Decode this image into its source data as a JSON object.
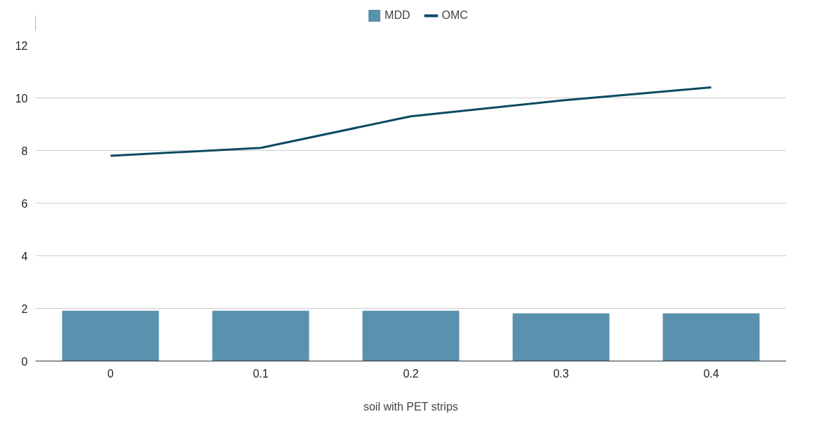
{
  "chart_data": {
    "type": "bar",
    "xlabel": "soil with PET strips",
    "categories": [
      "0",
      "0.1",
      "0.2",
      "0.3",
      "0.4"
    ],
    "series": [
      {
        "name": "MDD",
        "color": "#5a91ae",
        "values": [
          1.9,
          1.9,
          1.9,
          1.8,
          1.8
        ]
      },
      {
        "name": "OMC",
        "type": "line",
        "color": "#0d4a63",
        "values": [
          7.8,
          8.1,
          9.3,
          9.9,
          10.4
        ]
      }
    ],
    "ylim": [
      0,
      12
    ],
    "yticks": [
      0,
      2,
      4,
      6,
      8,
      10,
      12
    ],
    "grid": "y",
    "legend": "top"
  }
}
